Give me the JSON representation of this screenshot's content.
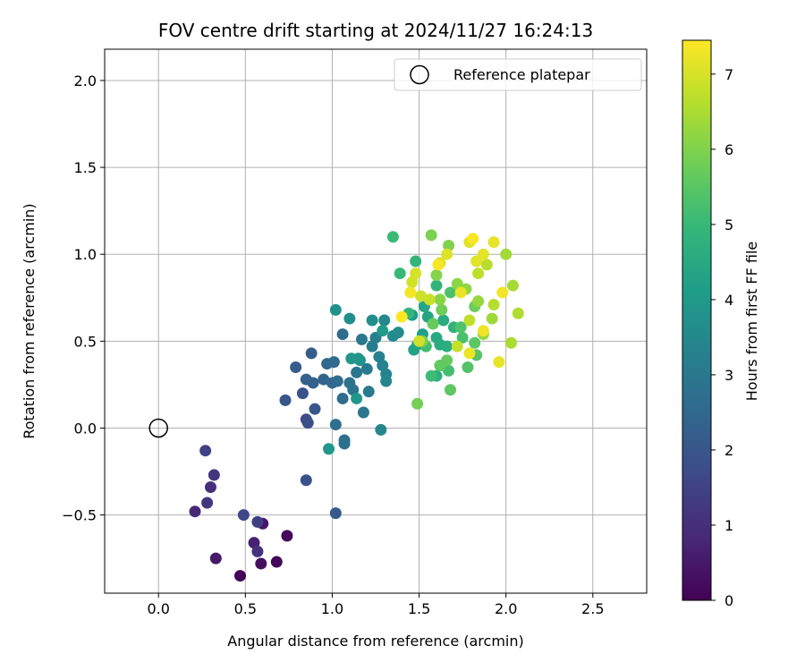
{
  "chart_data": {
    "type": "scatter",
    "title": "FOV centre drift starting at 2024/11/27 16:24:13",
    "xlabel": "Angular distance from reference (arcmin)",
    "ylabel": "Rotation from reference (arcmin)",
    "xlim": [
      -0.31,
      2.81
    ],
    "ylim": [
      -0.95,
      2.18
    ],
    "xticks": [
      0.0,
      0.5,
      1.0,
      1.5,
      2.0,
      2.5
    ],
    "xtick_labels": [
      "0.0",
      "0.5",
      "1.0",
      "1.5",
      "2.0",
      "2.5"
    ],
    "yticks": [
      -0.5,
      0.0,
      0.5,
      1.0,
      1.5,
      2.0
    ],
    "ytick_labels": [
      "−0.5",
      "0.0",
      "0.5",
      "1.0",
      "1.5",
      "2.0"
    ],
    "grid": true,
    "legend": {
      "placement": "top-right",
      "entries": [
        "Reference platepar"
      ]
    },
    "reference": {
      "x": 0.0,
      "y": 0.0,
      "label": "Reference platepar"
    },
    "colorbar": {
      "label": "Hours from first FF file",
      "min": 0,
      "max": 7.45,
      "ticks": [
        0,
        1,
        2,
        3,
        4,
        5,
        6,
        7
      ],
      "tick_labels": [
        "0",
        "1",
        "2",
        "3",
        "4",
        "5",
        "6",
        "7"
      ],
      "colormap": "viridis",
      "colors": [
        "#440154",
        "#482878",
        "#3e4989",
        "#31688e",
        "#26828e",
        "#1f9e89",
        "#35b779",
        "#6ece58",
        "#b5de2b",
        "#fde725"
      ]
    },
    "points": [
      {
        "x": 0.47,
        "y": -0.85,
        "c": 0.05
      },
      {
        "x": 0.68,
        "y": -0.77,
        "c": 0.12
      },
      {
        "x": 0.74,
        "y": -0.62,
        "c": 0.15
      },
      {
        "x": 0.59,
        "y": -0.78,
        "c": 0.3
      },
      {
        "x": 0.6,
        "y": -0.55,
        "c": 0.45
      },
      {
        "x": 0.33,
        "y": -0.75,
        "c": 0.5
      },
      {
        "x": 0.55,
        "y": -0.66,
        "c": 0.7
      },
      {
        "x": 0.21,
        "y": -0.48,
        "c": 0.85
      },
      {
        "x": 0.3,
        "y": -0.34,
        "c": 1.0
      },
      {
        "x": 0.57,
        "y": -0.71,
        "c": 1.05
      },
      {
        "x": 0.32,
        "y": -0.27,
        "c": 1.15
      },
      {
        "x": 0.28,
        "y": -0.43,
        "c": 1.2
      },
      {
        "x": 0.57,
        "y": -0.54,
        "c": 1.4
      },
      {
        "x": 0.27,
        "y": -0.13,
        "c": 1.45
      },
      {
        "x": 0.49,
        "y": -0.5,
        "c": 1.6
      },
      {
        "x": 0.85,
        "y": 0.05,
        "c": 1.7
      },
      {
        "x": 0.86,
        "y": 0.03,
        "c": 1.8
      },
      {
        "x": 0.85,
        "y": -0.3,
        "c": 1.9
      },
      {
        "x": 0.83,
        "y": 0.2,
        "c": 1.95
      },
      {
        "x": 0.73,
        "y": 0.16,
        "c": 2.0
      },
      {
        "x": 0.9,
        "y": 0.11,
        "c": 2.05
      },
      {
        "x": 1.02,
        "y": -0.49,
        "c": 2.1
      },
      {
        "x": 0.79,
        "y": 0.35,
        "c": 2.15
      },
      {
        "x": 0.88,
        "y": 0.43,
        "c": 2.2
      },
      {
        "x": 0.85,
        "y": 0.28,
        "c": 2.3
      },
      {
        "x": 0.89,
        "y": 0.26,
        "c": 2.35
      },
      {
        "x": 0.95,
        "y": 0.28,
        "c": 2.4
      },
      {
        "x": 0.97,
        "y": 0.37,
        "c": 2.45
      },
      {
        "x": 1.0,
        "y": 0.26,
        "c": 2.5
      },
      {
        "x": 1.01,
        "y": 0.38,
        "c": 2.55
      },
      {
        "x": 1.03,
        "y": 0.27,
        "c": 2.6
      },
      {
        "x": 1.06,
        "y": 0.17,
        "c": 2.62
      },
      {
        "x": 1.06,
        "y": 0.54,
        "c": 2.65
      },
      {
        "x": 1.02,
        "y": 0.02,
        "c": 2.7
      },
      {
        "x": 1.07,
        "y": -0.07,
        "c": 2.72
      },
      {
        "x": 1.07,
        "y": -0.09,
        "c": 2.75
      },
      {
        "x": 1.1,
        "y": 0.26,
        "c": 2.8
      },
      {
        "x": 1.12,
        "y": 0.22,
        "c": 2.85
      },
      {
        "x": 1.14,
        "y": 0.32,
        "c": 2.9
      },
      {
        "x": 1.18,
        "y": 0.09,
        "c": 2.95
      },
      {
        "x": 1.17,
        "y": 0.51,
        "c": 3.0
      },
      {
        "x": 1.2,
        "y": 0.34,
        "c": 3.05
      },
      {
        "x": 1.21,
        "y": 0.21,
        "c": 3.1
      },
      {
        "x": 1.23,
        "y": 0.47,
        "c": 3.15
      },
      {
        "x": 1.25,
        "y": 0.52,
        "c": 3.2
      },
      {
        "x": 1.27,
        "y": 0.41,
        "c": 3.25
      },
      {
        "x": 1.29,
        "y": 0.36,
        "c": 3.3
      },
      {
        "x": 1.31,
        "y": 0.31,
        "c": 3.35
      },
      {
        "x": 1.31,
        "y": 0.27,
        "c": 3.4
      },
      {
        "x": 1.28,
        "y": -0.01,
        "c": 3.45
      },
      {
        "x": 1.3,
        "y": 0.62,
        "c": 3.5
      },
      {
        "x": 1.35,
        "y": 0.53,
        "c": 3.55
      },
      {
        "x": 1.38,
        "y": 0.55,
        "c": 3.6
      },
      {
        "x": 1.23,
        "y": 0.62,
        "c": 3.65
      },
      {
        "x": 1.1,
        "y": 0.63,
        "c": 3.7
      },
      {
        "x": 1.02,
        "y": 0.68,
        "c": 3.75
      },
      {
        "x": 1.16,
        "y": 0.39,
        "c": 3.8
      },
      {
        "x": 1.15,
        "y": 0.4,
        "c": 3.85
      },
      {
        "x": 1.11,
        "y": 0.4,
        "c": 3.9
      },
      {
        "x": 1.14,
        "y": 0.17,
        "c": 3.95
      },
      {
        "x": 0.98,
        "y": -0.12,
        "c": 4.0
      },
      {
        "x": 1.29,
        "y": 0.56,
        "c": 4.05
      },
      {
        "x": 1.46,
        "y": 0.65,
        "c": 4.1
      },
      {
        "x": 1.49,
        "y": 0.48,
        "c": 4.15
      },
      {
        "x": 1.52,
        "y": 0.54,
        "c": 4.2
      },
      {
        "x": 1.47,
        "y": 0.45,
        "c": 4.3
      },
      {
        "x": 1.55,
        "y": 0.64,
        "c": 4.35
      },
      {
        "x": 1.53,
        "y": 0.7,
        "c": 4.4
      },
      {
        "x": 1.58,
        "y": 0.6,
        "c": 4.45
      },
      {
        "x": 1.6,
        "y": 0.52,
        "c": 4.5
      },
      {
        "x": 1.62,
        "y": 0.48,
        "c": 4.55
      },
      {
        "x": 1.64,
        "y": 0.62,
        "c": 4.6
      },
      {
        "x": 1.66,
        "y": 0.47,
        "c": 4.65
      },
      {
        "x": 1.6,
        "y": 0.3,
        "c": 4.7
      },
      {
        "x": 1.64,
        "y": 0.36,
        "c": 4.75
      },
      {
        "x": 1.7,
        "y": 0.58,
        "c": 4.8
      },
      {
        "x": 1.6,
        "y": 0.82,
        "c": 4.85
      },
      {
        "x": 1.48,
        "y": 0.96,
        "c": 4.9
      },
      {
        "x": 1.44,
        "y": 0.66,
        "c": 4.95
      },
      {
        "x": 1.39,
        "y": 0.89,
        "c": 5.0
      },
      {
        "x": 1.35,
        "y": 1.1,
        "c": 5.05
      },
      {
        "x": 1.57,
        "y": 0.3,
        "c": 5.1
      },
      {
        "x": 1.54,
        "y": 0.47,
        "c": 5.15
      },
      {
        "x": 1.67,
        "y": 0.33,
        "c": 5.2
      },
      {
        "x": 1.75,
        "y": 0.52,
        "c": 5.25
      },
      {
        "x": 1.68,
        "y": 0.78,
        "c": 5.3
      },
      {
        "x": 1.74,
        "y": 0.58,
        "c": 5.35
      },
      {
        "x": 1.78,
        "y": 0.35,
        "c": 5.4
      },
      {
        "x": 1.83,
        "y": 0.42,
        "c": 5.45
      },
      {
        "x": 1.82,
        "y": 0.49,
        "c": 5.5
      },
      {
        "x": 1.68,
        "y": 0.22,
        "c": 5.55
      },
      {
        "x": 1.62,
        "y": 0.36,
        "c": 5.6
      },
      {
        "x": 1.66,
        "y": 0.39,
        "c": 5.65
      },
      {
        "x": 1.58,
        "y": 0.6,
        "c": 5.7
      },
      {
        "x": 1.82,
        "y": 0.7,
        "c": 5.75
      },
      {
        "x": 1.63,
        "y": 0.68,
        "c": 5.8
      },
      {
        "x": 1.49,
        "y": 0.14,
        "c": 5.85
      },
      {
        "x": 1.52,
        "y": 0.5,
        "c": 5.9
      },
      {
        "x": 1.57,
        "y": 1.11,
        "c": 5.95
      },
      {
        "x": 1.67,
        "y": 1.05,
        "c": 6.0
      },
      {
        "x": 1.6,
        "y": 0.88,
        "c": 6.05
      },
      {
        "x": 1.62,
        "y": 0.74,
        "c": 6.1
      },
      {
        "x": 1.72,
        "y": 0.83,
        "c": 6.15
      },
      {
        "x": 1.77,
        "y": 0.8,
        "c": 6.2
      },
      {
        "x": 1.84,
        "y": 0.73,
        "c": 6.25
      },
      {
        "x": 1.87,
        "y": 0.54,
        "c": 6.3
      },
      {
        "x": 1.92,
        "y": 0.63,
        "c": 6.35
      },
      {
        "x": 2.0,
        "y": 1.0,
        "c": 6.4
      },
      {
        "x": 2.04,
        "y": 0.82,
        "c": 6.45
      },
      {
        "x": 2.03,
        "y": 0.49,
        "c": 6.5
      },
      {
        "x": 2.07,
        "y": 0.66,
        "c": 6.55
      },
      {
        "x": 1.93,
        "y": 0.71,
        "c": 6.6
      },
      {
        "x": 1.89,
        "y": 0.94,
        "c": 6.65
      },
      {
        "x": 1.84,
        "y": 0.89,
        "c": 6.7
      },
      {
        "x": 1.79,
        "y": 0.62,
        "c": 6.75
      },
      {
        "x": 1.72,
        "y": 0.47,
        "c": 6.8
      },
      {
        "x": 1.56,
        "y": 0.74,
        "c": 6.85
      },
      {
        "x": 1.51,
        "y": 0.76,
        "c": 6.9
      },
      {
        "x": 1.5,
        "y": 0.5,
        "c": 6.92
      },
      {
        "x": 1.46,
        "y": 0.84,
        "c": 6.95
      },
      {
        "x": 1.48,
        "y": 0.89,
        "c": 7.0
      },
      {
        "x": 1.62,
        "y": 0.95,
        "c": 7.05
      },
      {
        "x": 1.66,
        "y": 1.0,
        "c": 7.08
      },
      {
        "x": 1.79,
        "y": 1.07,
        "c": 7.1
      },
      {
        "x": 1.83,
        "y": 0.96,
        "c": 7.12
      },
      {
        "x": 1.87,
        "y": 1.0,
        "c": 7.15
      },
      {
        "x": 1.93,
        "y": 1.07,
        "c": 7.18
      },
      {
        "x": 1.96,
        "y": 0.38,
        "c": 7.2
      },
      {
        "x": 1.74,
        "y": 0.78,
        "c": 7.22
      },
      {
        "x": 1.79,
        "y": 0.43,
        "c": 7.25
      },
      {
        "x": 1.87,
        "y": 0.56,
        "c": 7.28
      },
      {
        "x": 1.98,
        "y": 0.78,
        "c": 7.32
      },
      {
        "x": 1.45,
        "y": 0.78,
        "c": 7.35
      },
      {
        "x": 1.61,
        "y": 0.94,
        "c": 7.38
      },
      {
        "x": 1.81,
        "y": 1.09,
        "c": 7.4
      },
      {
        "x": 1.4,
        "y": 0.64,
        "c": 7.45
      }
    ]
  }
}
